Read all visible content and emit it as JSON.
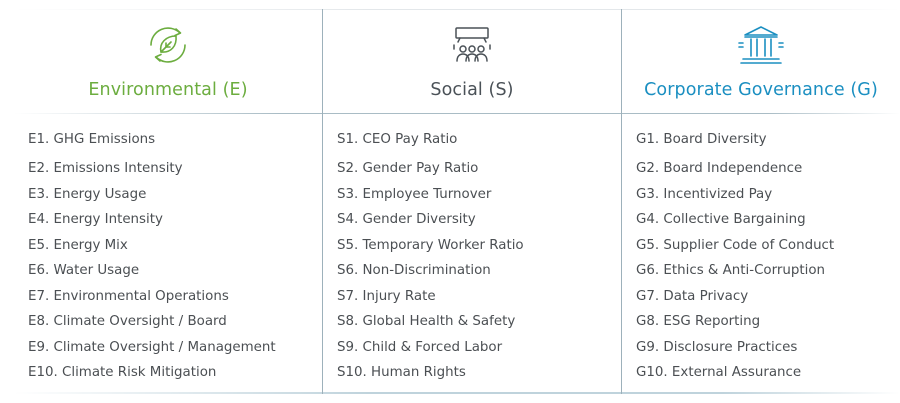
{
  "columns": [
    {
      "key": "environmental",
      "title": "Environmental (E)",
      "icon": "recycle-leaf-icon",
      "color": "#6cad3f",
      "items": [
        "E1. GHG Emissions",
        "E2. Emissions Intensity",
        "E3. Energy Usage",
        "E4. Energy Intensity",
        "E5. Energy Mix",
        "E6. Water Usage",
        "E7. Environmental Operations",
        "E8. Climate Oversight / Board",
        "E9. Climate Oversight / Management",
        "E10. Climate Risk Mitigation"
      ]
    },
    {
      "key": "social",
      "title": "Social (S)",
      "icon": "people-meeting-icon",
      "color": "#4a5157",
      "items": [
        "S1. CEO Pay Ratio",
        "S2. Gender Pay Ratio",
        "S3. Employee Turnover",
        "S4. Gender Diversity",
        "S5. Temporary Worker Ratio",
        "S6. Non-Discrimination",
        "S7. Injury Rate",
        "S8. Global Health & Safety",
        "S9. Child & Forced Labor",
        "S10. Human Rights"
      ]
    },
    {
      "key": "governance",
      "title": "Corporate Governance (G)",
      "icon": "government-building-icon",
      "color": "#1b8fc1",
      "items": [
        "G1. Board Diversity",
        "G2. Board Independence",
        "G3. Incentivized Pay",
        "G4. Collective Bargaining",
        "G5. Supplier Code of Conduct",
        "G6. Ethics & Anti-Corruption",
        "G7. Data Privacy",
        "G8. ESG Reporting",
        "G9. Disclosure Practices",
        "G10. External Assurance"
      ]
    }
  ]
}
